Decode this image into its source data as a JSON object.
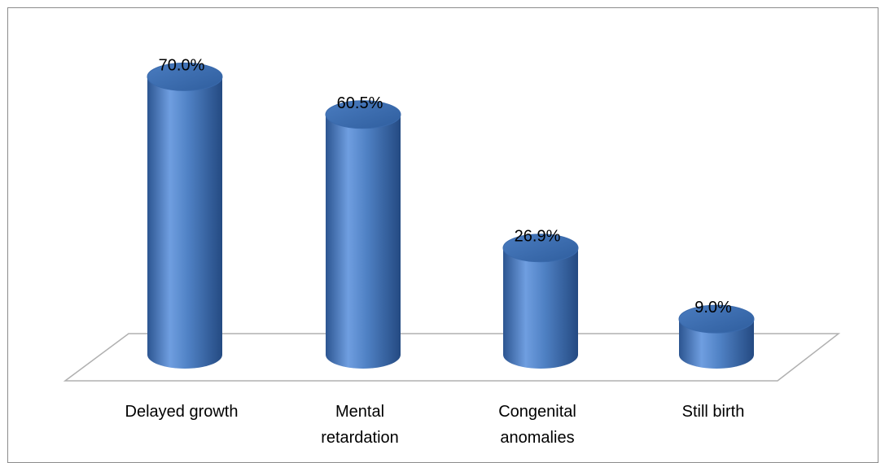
{
  "chart_data": {
    "type": "bar",
    "style": "3d-cylinder",
    "categories": [
      [
        "Delayed growth"
      ],
      [
        "Mental",
        "retardation"
      ],
      [
        "Congenital",
        "anomalies"
      ],
      [
        "Still birth"
      ]
    ],
    "values": [
      70.0,
      60.5,
      26.9,
      9.0
    ],
    "value_labels": [
      "70.0%",
      "60.5%",
      "26.9%",
      "9.0%"
    ],
    "unit": "%",
    "ylim": [
      0,
      80
    ],
    "grid": false,
    "legend": "none",
    "colors": {
      "bar_light": "#6f9ee0",
      "bar_mid": "#4f81c4",
      "bar_dark": "#2c5591",
      "bar_top": "#3f6fb4",
      "floor_stroke": "#b0b0b0",
      "frame_stroke": "#8c8c8c"
    }
  }
}
